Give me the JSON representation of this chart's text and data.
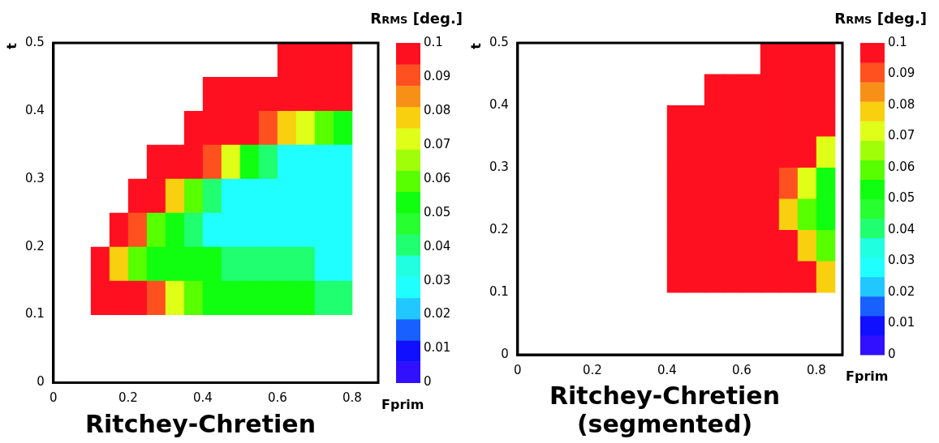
{
  "chart_data": [
    {
      "type": "heatmap",
      "title": "Ritchey-Chretien",
      "xlabel": "Fprim",
      "ylabel": "t",
      "clabel": "R$_{RMS}$ [deg.]",
      "x": [
        0.125,
        0.175,
        0.225,
        0.275,
        0.325,
        0.375,
        0.425,
        0.475,
        0.525,
        0.575,
        0.625,
        0.675,
        0.725,
        0.775
      ],
      "y": [
        0.475,
        0.425,
        0.375,
        0.325,
        0.275,
        0.225,
        0.175,
        0.125
      ],
      "cells": [
        [
          null,
          null,
          null,
          null,
          null,
          null,
          null,
          null,
          null,
          null,
          0.1,
          0.1,
          0.1,
          0.1
        ],
        [
          null,
          null,
          null,
          null,
          null,
          null,
          0.1,
          0.1,
          0.1,
          0.1,
          0.1,
          0.1,
          0.1,
          0.1
        ],
        [
          null,
          null,
          null,
          null,
          null,
          0.1,
          0.1,
          0.1,
          0.1,
          0.09,
          0.08,
          0.07,
          0.06,
          0.05
        ],
        [
          null,
          null,
          null,
          0.1,
          0.1,
          0.1,
          0.09,
          0.07,
          0.05,
          0.04,
          0.03,
          0.03,
          0.03,
          0.03
        ],
        [
          null,
          null,
          0.1,
          0.1,
          0.08,
          0.06,
          0.04,
          0.03,
          0.03,
          0.03,
          0.03,
          0.03,
          0.03,
          0.03
        ],
        [
          null,
          0.1,
          0.09,
          0.06,
          0.05,
          0.04,
          0.03,
          0.03,
          0.03,
          0.03,
          0.03,
          0.03,
          0.03,
          0.03
        ],
        [
          0.1,
          0.08,
          0.06,
          0.05,
          0.05,
          0.05,
          0.05,
          0.04,
          0.04,
          0.04,
          0.04,
          0.04,
          0.03,
          0.03
        ],
        [
          0.1,
          0.1,
          0.1,
          0.09,
          0.07,
          0.06,
          0.05,
          0.05,
          0.05,
          0.05,
          0.05,
          0.05,
          0.04,
          0.04
        ]
      ],
      "colors": [
        "#3010ff",
        "#1010ff",
        "#1860ff",
        "#20c8ff",
        "#20ffff",
        "#20ffe0",
        "#20ff70",
        "#28ff30",
        "#10ff10",
        "#58ff00",
        "#a0ff08",
        "#e0ff18",
        "#f8d010",
        "#f89018",
        "#ff5020",
        "#ff1020"
      ],
      "xlim": [
        0,
        0.87
      ],
      "xticks": [
        0,
        0.2,
        0.4,
        0.6,
        0.8
      ],
      "ylim": [
        0,
        0.5
      ],
      "yticks": [
        0,
        0.1,
        0.2,
        0.3,
        0.4,
        0.5
      ],
      "clim": [
        0,
        0.1
      ],
      "cticks": [
        0,
        0.01,
        0.02,
        0.03,
        0.04,
        0.05,
        0.06,
        0.07,
        0.08,
        0.09,
        0.1
      ]
    },
    {
      "type": "heatmap",
      "title": "Ritchey-Chretien\n(segmented)",
      "xlabel": "Fprim",
      "ylabel": "t",
      "clabel": "R$_{RMS}$ [deg.]",
      "x": [
        0.425,
        0.475,
        0.525,
        0.575,
        0.625,
        0.675,
        0.725,
        0.775,
        0.825
      ],
      "y": [
        0.475,
        0.425,
        0.375,
        0.325,
        0.275,
        0.225,
        0.175,
        0.125
      ],
      "cells": [
        [
          null,
          null,
          null,
          null,
          null,
          0.1,
          0.1,
          0.1,
          0.1
        ],
        [
          null,
          null,
          0.1,
          0.1,
          0.1,
          0.1,
          0.1,
          0.1,
          0.1
        ],
        [
          0.1,
          0.1,
          0.1,
          0.1,
          0.1,
          0.1,
          0.1,
          0.1,
          0.1
        ],
        [
          0.1,
          0.1,
          0.1,
          0.1,
          0.1,
          0.1,
          0.1,
          0.1,
          0.07
        ],
        [
          0.1,
          0.1,
          0.1,
          0.1,
          0.1,
          0.1,
          0.09,
          0.07,
          0.05
        ],
        [
          0.1,
          0.1,
          0.1,
          0.1,
          0.1,
          0.1,
          0.08,
          0.06,
          0.05
        ],
        [
          0.1,
          0.1,
          0.1,
          0.1,
          0.1,
          0.1,
          0.1,
          0.08,
          0.06
        ],
        [
          0.1,
          0.1,
          0.1,
          0.1,
          0.1,
          0.1,
          0.1,
          0.1,
          0.08
        ]
      ],
      "colors": [
        "#3010ff",
        "#1010ff",
        "#1860ff",
        "#20c8ff",
        "#20ffff",
        "#20ffe0",
        "#20ff70",
        "#28ff30",
        "#10ff10",
        "#58ff00",
        "#a0ff08",
        "#e0ff18",
        "#f8d010",
        "#f89018",
        "#ff5020",
        "#ff1020"
      ],
      "xlim": [
        0,
        0.87
      ],
      "xticks": [
        0,
        0.2,
        0.4,
        0.6,
        0.8
      ],
      "ylim": [
        0,
        0.5
      ],
      "yticks": [
        0,
        0.1,
        0.2,
        0.3,
        0.4,
        0.5
      ],
      "clim": [
        0,
        0.1
      ],
      "cticks": [
        0,
        0.01,
        0.02,
        0.03,
        0.04,
        0.05,
        0.06,
        0.07,
        0.08,
        0.09,
        0.1
      ]
    }
  ]
}
